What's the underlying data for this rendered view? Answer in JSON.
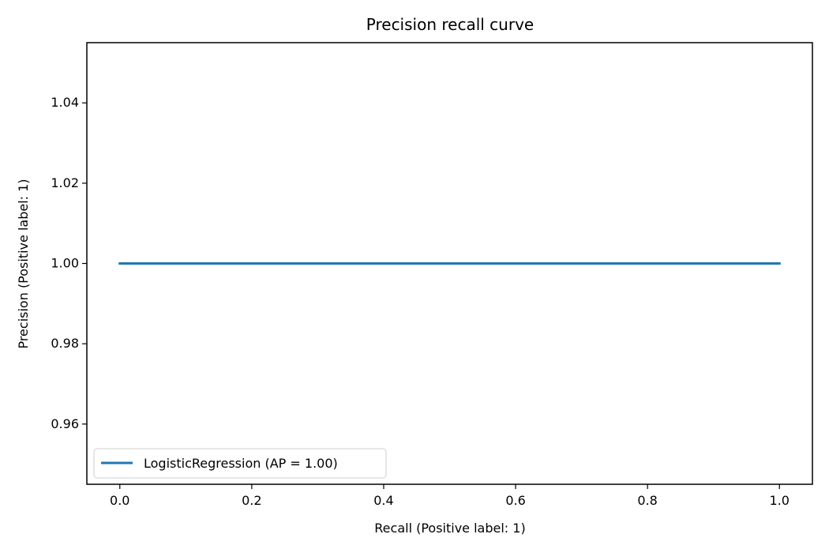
{
  "chart_data": {
    "type": "line",
    "title": "Precision recall curve",
    "xlabel": "Recall (Positive label: 1)",
    "ylabel": "Precision (Positive label: 1)",
    "xlim": [
      -0.05,
      1.05
    ],
    "ylim": [
      0.945,
      1.055
    ],
    "xticks": [
      0.0,
      0.2,
      0.4,
      0.6,
      0.8,
      1.0
    ],
    "xtick_labels": [
      "0.0",
      "0.2",
      "0.4",
      "0.6",
      "0.8",
      "1.0"
    ],
    "yticks": [
      0.96,
      0.98,
      1.0,
      1.02,
      1.04
    ],
    "ytick_labels": [
      "0.96",
      "0.98",
      "1.00",
      "1.02",
      "1.04"
    ],
    "grid": false,
    "legend_position": "lower-left",
    "series": [
      {
        "name": "LogisticRegression (AP = 1.00)",
        "color": "#1f77b4",
        "x": [
          0.0,
          1.0
        ],
        "y": [
          1.0,
          1.0
        ]
      }
    ]
  }
}
